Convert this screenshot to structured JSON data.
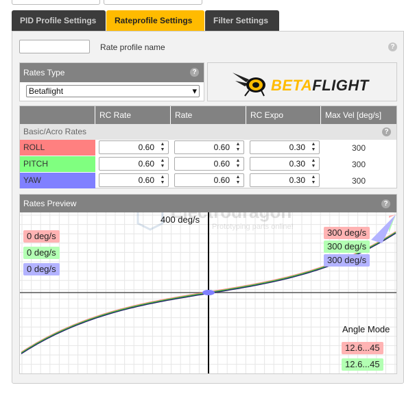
{
  "tabs": [
    "PID Profile Settings",
    "Rateprofile Settings",
    "Filter Settings"
  ],
  "active_tab": 1,
  "profile": {
    "name_value": "",
    "name_label": "Rate profile name",
    "help": "?"
  },
  "rates_type": {
    "title": "Rates Type",
    "selected": "Betaflight",
    "caret": "▾"
  },
  "logo": {
    "text_beta": "BETA",
    "text_flight": "FLIGHT"
  },
  "table": {
    "columns": [
      "",
      "RC Rate",
      "Rate",
      "RC Expo",
      "Max Vel [deg/s]"
    ],
    "section": "Basic/Acro Rates",
    "rows": [
      {
        "axis": "ROLL",
        "rc_rate": "0.60",
        "rate": "0.60",
        "rc_expo": "0.30",
        "max_vel": "300"
      },
      {
        "axis": "PITCH",
        "rc_rate": "0.60",
        "rate": "0.60",
        "rc_expo": "0.30",
        "max_vel": "300"
      },
      {
        "axis": "YAW",
        "rc_rate": "0.60",
        "rate": "0.60",
        "rc_expo": "0.30",
        "max_vel": "300"
      }
    ],
    "colors": {
      "roll": "#ff8080",
      "pitch": "#80ff80",
      "yaw": "#8080ff"
    }
  },
  "preview": {
    "title": "Rates Preview",
    "watermark_title": "Electrodragon",
    "watermark_sub": "Prototyping parts online!",
    "max_label": "400 deg/s",
    "left_labels": [
      "0 deg/s",
      "0 deg/s",
      "0 deg/s"
    ],
    "right_labels": [
      "300 deg/s",
      "300 deg/s",
      "300 deg/s"
    ],
    "angle_mode": "Angle Mode",
    "angle_labels": [
      "12.6...45",
      "12.6...45"
    ]
  }
}
